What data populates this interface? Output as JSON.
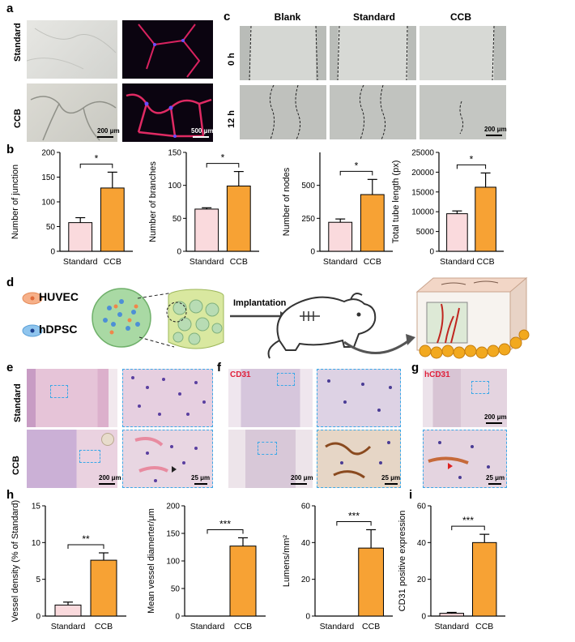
{
  "panel_letters": {
    "a": "a",
    "b": "b",
    "c": "c",
    "d": "d",
    "e": "e",
    "f": "f",
    "g": "g",
    "h": "h",
    "i": "i"
  },
  "panel_a": {
    "rows": [
      "Standard",
      "CCB"
    ],
    "scalebar_left": "200 μm",
    "scalebar_right": "500 μm"
  },
  "panel_c": {
    "columns": [
      "Blank",
      "Standard",
      "CCB"
    ],
    "rows": [
      "0 h",
      "12 h"
    ],
    "scalebar": "200 μm"
  },
  "panel_d": {
    "cell1": "HUVEC",
    "cell2": "hDPSC",
    "arrow_label": "Implantation"
  },
  "panel_e": {
    "rows": [
      "Standard",
      "CCB"
    ],
    "scalebar_main": "200 μm",
    "scalebar_zoom": "25 μm"
  },
  "panel_f": {
    "stain": "CD31",
    "scalebar_main": "200 μm",
    "scalebar_zoom": "25 μm"
  },
  "panel_g": {
    "stain": "hCD31",
    "scalebar_main": "200 μm",
    "scalebar_zoom": "25 μm"
  },
  "colors": {
    "standard_bar": "#fadadd",
    "ccb_bar": "#f7a234",
    "zoom_border": "#3aa8e8",
    "stain_label": "#e0203a"
  },
  "chart_data": [
    {
      "type": "bar",
      "panel": "b",
      "categories": [
        "Standard",
        "CCB"
      ],
      "values": [
        58,
        128
      ],
      "errors": [
        10,
        32
      ],
      "ylabel": "Number of junction",
      "ylim": [
        0,
        200
      ],
      "yticks": [
        0,
        50,
        100,
        150,
        200
      ],
      "significance": "*"
    },
    {
      "type": "bar",
      "panel": "b",
      "categories": [
        "Standard",
        "CCB"
      ],
      "values": [
        64,
        99
      ],
      "errors": [
        2,
        22
      ],
      "ylabel": "Number of branches",
      "ylim": [
        0,
        150
      ],
      "yticks": [
        0,
        50,
        100,
        150
      ],
      "significance": "*"
    },
    {
      "type": "bar",
      "panel": "b",
      "categories": [
        "Standard",
        "CCB"
      ],
      "values": [
        220,
        430
      ],
      "errors": [
        25,
        115
      ],
      "ylabel": "Number of nodes",
      "ylim": [
        0,
        750
      ],
      "yticks": [
        0,
        250,
        500
      ],
      "significance": "*"
    },
    {
      "type": "bar",
      "panel": "b",
      "categories": [
        "Standard",
        "CCB"
      ],
      "values": [
        9500,
        16200
      ],
      "errors": [
        700,
        3600
      ],
      "ylabel": "Total tube length (px)",
      "ylim": [
        0,
        25000
      ],
      "yticks": [
        0,
        5000,
        10000,
        15000,
        20000,
        25000
      ],
      "significance": "*"
    },
    {
      "type": "bar",
      "panel": "h",
      "categories": [
        "Standard",
        "CCB"
      ],
      "values": [
        1.5,
        7.6
      ],
      "errors": [
        0.4,
        1.0
      ],
      "ylabel": "Vessel density (% of Standard)",
      "ylim": [
        0,
        15
      ],
      "yticks": [
        0,
        5,
        10,
        15
      ],
      "significance": "**"
    },
    {
      "type": "bar",
      "panel": "h",
      "categories": [
        "Standard",
        "CCB"
      ],
      "values": [
        0,
        127
      ],
      "errors": [
        0,
        15
      ],
      "ylabel": "Mean vessel diamerter/μm",
      "ylim": [
        0,
        200
      ],
      "yticks": [
        0,
        50,
        100,
        150,
        200
      ],
      "significance": "***"
    },
    {
      "type": "bar",
      "panel": "h",
      "categories": [
        "Standard",
        "CCB"
      ],
      "values": [
        0,
        37
      ],
      "errors": [
        0,
        10
      ],
      "ylabel": "Lumens/mm²",
      "ylim": [
        0,
        60
      ],
      "yticks": [
        0,
        20,
        40,
        60
      ],
      "significance": "***"
    },
    {
      "type": "bar",
      "panel": "i",
      "categories": [
        "Standard",
        "CCB"
      ],
      "values": [
        1.5,
        40
      ],
      "errors": [
        0.5,
        4.5
      ],
      "ylabel": "CD31 positive expression",
      "ylim": [
        0,
        60
      ],
      "yticks": [
        0,
        20,
        40,
        60
      ],
      "significance": "***"
    }
  ]
}
